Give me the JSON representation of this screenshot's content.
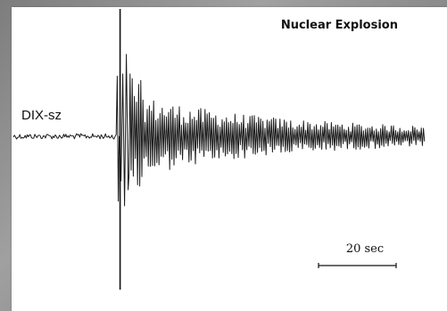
{
  "chart_data": {
    "type": "line",
    "title": "Nuclear Explosion",
    "station_label": "DIX-sz",
    "scale_bar": {
      "label": "20 sec",
      "seconds": 20
    },
    "time_range_sec": [
      0,
      106
    ],
    "amplitude_range": [
      -1,
      1
    ],
    "event_onset_sec": 27.5,
    "colors": {
      "trace": "#1a1a1a",
      "marker": "#111111",
      "background": "#ffffff"
    }
  }
}
